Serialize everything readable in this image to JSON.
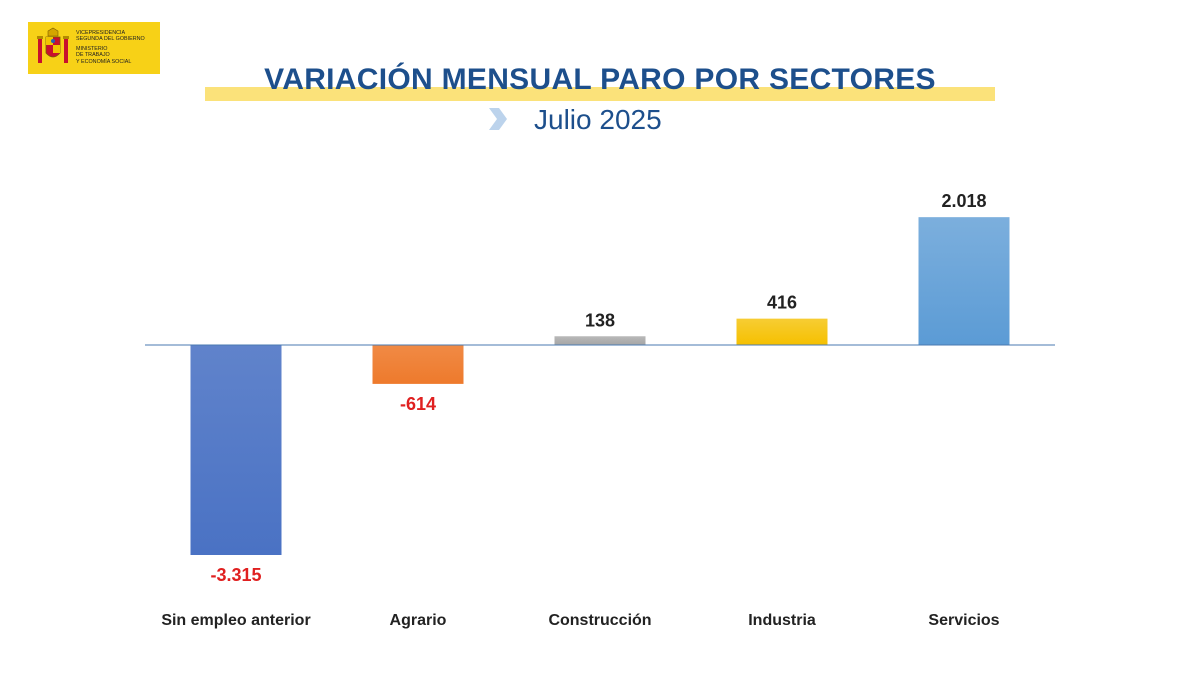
{
  "logo": {
    "line1": "VICEPRESIDENCIA",
    "line2": "SEGUNDA DEL GOBIERNO",
    "line3": "MINISTERIO",
    "line4": "DE TRABAJO",
    "line5": "Y ECONOMÍA SOCIAL",
    "color": "#f7d117"
  },
  "header": {
    "title": "VARIACIÓN MENSUAL PARO POR SECTORES",
    "subtitle": "Julio 2025"
  },
  "chart_data": {
    "type": "bar",
    "categories": [
      "Sin empleo anterior",
      "Agrario",
      "Construcción",
      "Industria",
      "Servicios"
    ],
    "values": [
      -3315,
      -614,
      138,
      416,
      2018
    ],
    "value_labels": [
      "-3.315",
      "-614",
      "138",
      "416",
      "2.018"
    ],
    "colors": [
      "#4a72c4",
      "#ee7a2c",
      "#a6a6a6",
      "#f5c000",
      "#5b9bd5"
    ],
    "negative_label_color": "#e02020",
    "positive_label_color": "#222222",
    "ylim": [
      -3315,
      2018
    ],
    "grid": false,
    "legend": "none"
  }
}
